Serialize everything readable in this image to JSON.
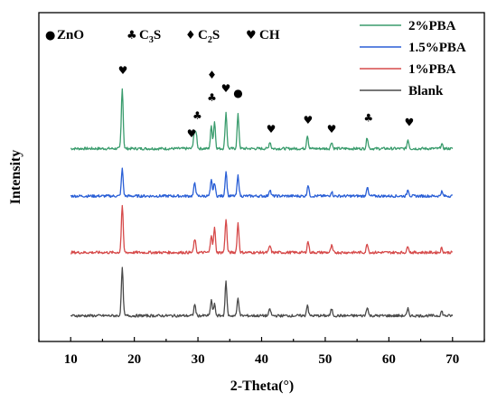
{
  "chart_data": {
    "type": "line",
    "xlabel": "2-Theta(°)",
    "ylabel": "Intensity",
    "xlim": [
      5,
      75
    ],
    "x_ticks": [
      10,
      20,
      30,
      40,
      50,
      60,
      70
    ],
    "x_tick_labels": [
      "10",
      "20",
      "30",
      "40",
      "50",
      "60",
      "70"
    ],
    "y_axis_values_shown": false,
    "grid": false,
    "legend_position": "top-right",
    "phase_legend": [
      {
        "symbol": "●",
        "name": "ZnO",
        "icon": "circle-icon"
      },
      {
        "symbol": "♣",
        "name": "C₃S",
        "icon": "club-icon"
      },
      {
        "symbol": "♦",
        "name": "C₂S",
        "icon": "diamond-icon"
      },
      {
        "symbol": "♥",
        "name": "CH",
        "icon": "heart-icon"
      }
    ],
    "series": [
      {
        "name": "2%PBA",
        "color": "#3a9c6d",
        "baseline": 0.79,
        "peaks": [
          [
            18.1,
            0.27
          ],
          [
            29.4,
            0.06
          ],
          [
            29.7,
            0.07
          ],
          [
            32.1,
            0.1
          ],
          [
            32.6,
            0.12
          ],
          [
            34.4,
            0.16
          ],
          [
            36.3,
            0.15
          ],
          [
            41.3,
            0.03
          ],
          [
            47.2,
            0.06
          ],
          [
            51.0,
            0.03
          ],
          [
            56.6,
            0.05
          ],
          [
            63.0,
            0.04
          ],
          [
            68.3,
            0.02
          ]
        ]
      },
      {
        "name": "1.5%PBA",
        "color": "#2a5fd6",
        "baseline": 0.58,
        "peaks": [
          [
            18.1,
            0.12
          ],
          [
            29.5,
            0.06
          ],
          [
            32.1,
            0.07
          ],
          [
            32.6,
            0.06
          ],
          [
            34.4,
            0.11
          ],
          [
            36.3,
            0.09
          ],
          [
            41.3,
            0.03
          ],
          [
            47.3,
            0.05
          ],
          [
            51.0,
            0.02
          ],
          [
            56.6,
            0.04
          ],
          [
            63.0,
            0.03
          ],
          [
            68.3,
            0.02
          ]
        ]
      },
      {
        "name": "1%PBA",
        "color": "#d64a4a",
        "baseline": 0.33,
        "peaks": [
          [
            18.1,
            0.21
          ],
          [
            29.5,
            0.06
          ],
          [
            32.1,
            0.08
          ],
          [
            32.6,
            0.11
          ],
          [
            34.4,
            0.15
          ],
          [
            36.3,
            0.13
          ],
          [
            41.3,
            0.03
          ],
          [
            47.3,
            0.05
          ],
          [
            51.0,
            0.03
          ],
          [
            56.6,
            0.04
          ],
          [
            63.0,
            0.03
          ],
          [
            68.3,
            0.02
          ]
        ]
      },
      {
        "name": "Blank",
        "color": "#4a4a4a",
        "baseline": 0.05,
        "peaks": [
          [
            18.1,
            0.21
          ],
          [
            29.5,
            0.05
          ],
          [
            32.1,
            0.07
          ],
          [
            32.6,
            0.05
          ],
          [
            34.4,
            0.15
          ],
          [
            36.3,
            0.08
          ],
          [
            41.3,
            0.03
          ],
          [
            47.2,
            0.05
          ],
          [
            51.0,
            0.03
          ],
          [
            56.6,
            0.04
          ],
          [
            63.0,
            0.03
          ],
          [
            68.3,
            0.02
          ]
        ]
      }
    ],
    "peak_markers": [
      {
        "x": 18.2,
        "symbol": "♥",
        "icon": "heart-icon",
        "level": 1.12
      },
      {
        "x": 29.0,
        "symbol": "♥",
        "icon": "heart-icon",
        "level": 0.84
      },
      {
        "x": 29.9,
        "symbol": "♣",
        "icon": "club-icon",
        "level": 0.92
      },
      {
        "x": 32.2,
        "symbol": "♦",
        "icon": "diamond-icon",
        "level": 1.1
      },
      {
        "x": 32.2,
        "symbol": "♣",
        "icon": "club-icon",
        "level": 1.0
      },
      {
        "x": 34.4,
        "symbol": "♥",
        "icon": "heart-icon",
        "level": 1.04
      },
      {
        "x": 36.3,
        "symbol": "●",
        "icon": "circle-icon",
        "level": 1.02
      },
      {
        "x": 41.5,
        "symbol": "♥",
        "icon": "heart-icon",
        "level": 0.86
      },
      {
        "x": 47.3,
        "symbol": "♥",
        "icon": "heart-icon",
        "level": 0.9
      },
      {
        "x": 51.0,
        "symbol": "♥",
        "icon": "heart-icon",
        "level": 0.86
      },
      {
        "x": 56.8,
        "symbol": "♣",
        "icon": "club-icon",
        "level": 0.91
      },
      {
        "x": 63.2,
        "symbol": "♥",
        "icon": "heart-icon",
        "level": 0.89
      }
    ]
  }
}
